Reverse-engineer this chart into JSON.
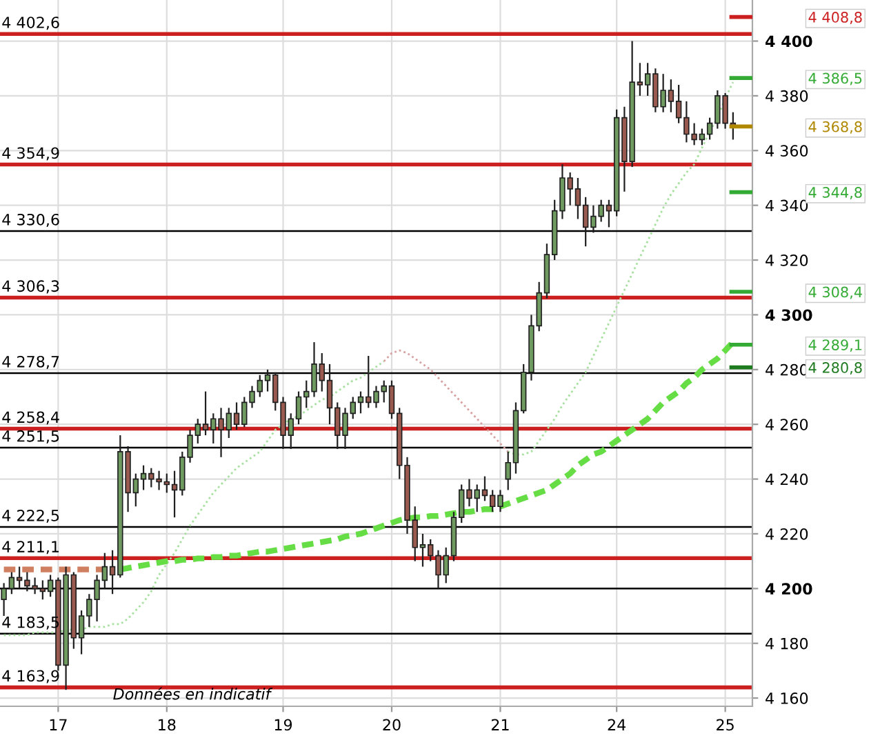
{
  "chart_data": {
    "type": "candlestick",
    "categories": [
      null,
      null,
      null,
      null,
      null,
      null,
      null,
      "17",
      null,
      null,
      null,
      null,
      null,
      null,
      null,
      null,
      null,
      null,
      null,
      null,
      null,
      "18",
      null,
      null,
      null,
      null,
      null,
      null,
      null,
      null,
      null,
      null,
      null,
      null,
      null,
      null,
      "19",
      null,
      null,
      null,
      null,
      null,
      null,
      null,
      null,
      null,
      null,
      null,
      null,
      null,
      "20",
      null,
      null,
      null,
      null,
      null,
      null,
      null,
      null,
      null,
      null,
      null,
      null,
      null,
      "21",
      null,
      null,
      null,
      null,
      null,
      null,
      null,
      null,
      null,
      null,
      null,
      null,
      null,
      null,
      "24",
      null,
      null,
      null,
      null,
      null,
      null,
      null,
      null,
      null,
      null,
      null,
      null,
      null,
      "25",
      null
    ],
    "ohlc": [
      [
        4196,
        4202,
        4190,
        4200
      ],
      [
        4200,
        4206,
        4198,
        4204
      ],
      [
        4204,
        4208,
        4200,
        4203
      ],
      [
        4203,
        4206,
        4199,
        4201
      ],
      [
        4201,
        4204,
        4198,
        4200
      ],
      [
        4200,
        4203,
        4196,
        4199
      ],
      [
        4199,
        4205,
        4197,
        4203
      ],
      [
        4203,
        4204,
        4170,
        4172
      ],
      [
        4172,
        4208,
        4163,
        4205
      ],
      [
        4205,
        4206,
        4178,
        4182
      ],
      [
        4182,
        4192,
        4176,
        4190
      ],
      [
        4190,
        4198,
        4186,
        4196
      ],
      [
        4196,
        4205,
        4188,
        4203
      ],
      [
        4203,
        4213,
        4200,
        4208
      ],
      [
        4208,
        4214,
        4198,
        4205
      ],
      [
        4205,
        4256,
        4204,
        4250
      ],
      [
        4250,
        4252,
        4228,
        4235
      ],
      [
        4235,
        4242,
        4230,
        4240
      ],
      [
        4240,
        4245,
        4236,
        4242
      ],
      [
        4242,
        4244,
        4237,
        4240
      ],
      [
        4240,
        4243,
        4236,
        4239
      ],
      [
        4239,
        4242,
        4235,
        4238
      ],
      [
        4238,
        4243,
        4226,
        4236
      ],
      [
        4236,
        4250,
        4234,
        4248
      ],
      [
        4248,
        4258,
        4246,
        4256
      ],
      [
        4256,
        4262,
        4253,
        4260
      ],
      [
        4260,
        4272,
        4256,
        4258
      ],
      [
        4258,
        4264,
        4253,
        4262
      ],
      [
        4262,
        4266,
        4248,
        4258
      ],
      [
        4258,
        4266,
        4255,
        4264
      ],
      [
        4264,
        4268,
        4258,
        4260
      ],
      [
        4260,
        4270,
        4259,
        4268
      ],
      [
        4268,
        4274,
        4266,
        4272
      ],
      [
        4272,
        4278,
        4270,
        4276
      ],
      [
        4276,
        4280,
        4272,
        4278
      ],
      [
        4278,
        4279,
        4265,
        4268
      ],
      [
        4268,
        4270,
        4251,
        4256
      ],
      [
        4256,
        4264,
        4251,
        4262
      ],
      [
        4262,
        4272,
        4260,
        4270
      ],
      [
        4270,
        4276,
        4266,
        4272
      ],
      [
        4272,
        4290,
        4270,
        4282
      ],
      [
        4282,
        4286,
        4272,
        4276
      ],
      [
        4276,
        4282,
        4260,
        4266
      ],
      [
        4266,
        4268,
        4251,
        4256
      ],
      [
        4256,
        4266,
        4251,
        4264
      ],
      [
        4264,
        4270,
        4262,
        4268
      ],
      [
        4268,
        4272,
        4264,
        4270
      ],
      [
        4270,
        4285,
        4266,
        4268
      ],
      [
        4268,
        4274,
        4266,
        4272
      ],
      [
        4272,
        4276,
        4268,
        4274
      ],
      [
        4274,
        4276,
        4262,
        4264
      ],
      [
        4264,
        4266,
        4240,
        4245
      ],
      [
        4245,
        4248,
        4220,
        4225
      ],
      [
        4225,
        4230,
        4210,
        4215
      ],
      [
        4215,
        4220,
        4208,
        4216
      ],
      [
        4216,
        4218,
        4210,
        4212
      ],
      [
        4212,
        4214,
        4200,
        4205
      ],
      [
        4205,
        4215,
        4202,
        4212
      ],
      [
        4212,
        4228,
        4210,
        4226
      ],
      [
        4226,
        4238,
        4224,
        4236
      ],
      [
        4236,
        4240,
        4230,
        4233
      ],
      [
        4233,
        4238,
        4228,
        4236
      ],
      [
        4236,
        4241,
        4232,
        4234
      ],
      [
        4234,
        4236,
        4228,
        4230
      ],
      [
        4230,
        4236,
        4228,
        4234
      ],
      [
        4240,
        4250,
        4236,
        4246
      ],
      [
        4246,
        4268,
        4242,
        4265
      ],
      [
        4265,
        4282,
        4264,
        4279
      ],
      [
        4279,
        4300,
        4276,
        4296
      ],
      [
        4296,
        4312,
        4294,
        4308
      ],
      [
        4308,
        4326,
        4306,
        4322
      ],
      [
        4322,
        4342,
        4320,
        4338
      ],
      [
        4338,
        4355,
        4335,
        4350
      ],
      [
        4350,
        4352,
        4340,
        4346
      ],
      [
        4346,
        4350,
        4335,
        4340
      ],
      [
        4340,
        4343,
        4325,
        4332
      ],
      [
        4332,
        4340,
        4330,
        4336
      ],
      [
        4336,
        4342,
        4334,
        4340
      ],
      [
        4340,
        4342,
        4332,
        4338
      ],
      [
        4338,
        4375,
        4336,
        4372
      ],
      [
        4372,
        4376,
        4345,
        4356
      ],
      [
        4356,
        4400,
        4354,
        4385
      ],
      [
        4385,
        4392,
        4380,
        4384
      ],
      [
        4384,
        4392,
        4380,
        4388
      ],
      [
        4388,
        4390,
        4374,
        4376
      ],
      [
        4376,
        4388,
        4374,
        4382
      ],
      [
        4382,
        4386,
        4374,
        4378
      ],
      [
        4378,
        4384,
        4370,
        4372
      ],
      [
        4372,
        4378,
        4363,
        4366
      ],
      [
        4366,
        4370,
        4362,
        4364
      ],
      [
        4364,
        4368,
        4362,
        4366
      ],
      [
        4366,
        4372,
        4364,
        4370
      ],
      [
        4370,
        4382,
        4368,
        4380
      ],
      [
        4380,
        4381,
        4368,
        4370
      ],
      [
        4370,
        4374,
        4364,
        4368.8
      ]
    ],
    "series": [
      {
        "type": "line",
        "color": "#a8e0a0",
        "line_style": "dotted",
        "values": [
          4183,
          4183,
          4183,
          4183,
          4184,
          4184,
          4184,
          4184,
          4185,
          4185,
          4185,
          4186,
          4186,
          4186,
          4187,
          4187,
          4189,
          4192,
          4195,
          4199,
          4205,
          4209,
          4213,
          4218,
          4223,
          4227,
          4231,
          4235,
          4238,
          4241,
          4244,
          4246,
          4248,
          4250,
          4254,
          4258,
          4260,
          4262,
          4263,
          4265,
          4267,
          4269,
          4270,
          4272,
          4274,
          4276,
          4277,
          4279,
          4281,
          4283,
          null,
          null,
          null,
          null,
          null,
          null,
          null,
          null,
          null,
          null,
          null,
          null,
          null,
          null,
          null,
          null,
          null,
          null,
          null,
          null,
          null,
          null,
          null,
          null,
          null,
          null,
          null,
          null,
          null,
          null,
          null,
          null,
          null,
          null,
          null,
          null,
          null,
          null,
          null,
          null,
          null,
          null,
          null,
          null,
          null
        ]
      },
      {
        "type": "line",
        "color": "#d8a0a0",
        "line_style": "dotted",
        "values": [
          null,
          null,
          null,
          null,
          null,
          null,
          null,
          null,
          null,
          null,
          null,
          null,
          null,
          null,
          null,
          null,
          null,
          null,
          null,
          null,
          null,
          null,
          null,
          null,
          null,
          null,
          null,
          null,
          null,
          null,
          null,
          null,
          null,
          null,
          null,
          null,
          null,
          null,
          null,
          null,
          null,
          null,
          null,
          null,
          null,
          null,
          null,
          null,
          null,
          4283,
          4286,
          4287,
          4286,
          4284,
          4282,
          4280,
          4277,
          4274,
          4271,
          4268,
          4265,
          4262,
          4259,
          4256,
          4253,
          4250,
          null,
          null,
          null,
          null,
          null,
          null,
          null,
          null,
          null,
          null,
          null,
          null,
          null,
          null,
          null,
          null,
          null,
          null,
          null,
          null,
          null,
          null,
          null,
          null,
          null,
          null,
          null,
          null,
          null
        ]
      },
      {
        "type": "line",
        "color": "#a8e0a0",
        "line_style": "dotted",
        "values": [
          null,
          null,
          null,
          null,
          null,
          null,
          null,
          null,
          null,
          null,
          null,
          null,
          null,
          null,
          null,
          null,
          null,
          null,
          null,
          null,
          null,
          null,
          null,
          null,
          null,
          null,
          null,
          null,
          null,
          null,
          null,
          null,
          null,
          null,
          null,
          null,
          null,
          null,
          null,
          null,
          null,
          null,
          null,
          null,
          null,
          null,
          null,
          null,
          null,
          null,
          null,
          null,
          null,
          null,
          null,
          null,
          null,
          null,
          null,
          null,
          null,
          null,
          null,
          null,
          null,
          4250,
          4249,
          4249,
          4250,
          4254,
          4258,
          4262,
          4267,
          4271,
          4275,
          4279,
          4285,
          4291,
          4297,
          4303,
          4309,
          4315,
          4321,
          4327,
          4333,
          4339,
          4344,
          4348,
          4352,
          4355,
          4361,
          4367,
          4372,
          4379,
          4385
        ]
      },
      {
        "type": "line",
        "color": "#d08060",
        "line_style": "dashed",
        "values": [
          4207,
          4207,
          4207,
          4207,
          4207,
          4207,
          4207,
          4207,
          4207,
          4207,
          4207,
          4207,
          4207,
          4207,
          4207,
          null,
          null,
          null,
          null,
          null,
          null,
          null,
          null,
          null,
          null,
          null,
          null,
          null,
          null,
          null,
          null,
          null,
          null,
          null,
          null,
          null,
          null,
          null,
          null,
          null,
          null,
          null,
          null,
          null,
          null,
          null,
          null,
          null,
          null,
          null,
          null,
          null,
          null,
          null,
          null,
          null,
          null,
          null,
          null,
          null,
          null,
          null,
          null,
          null,
          null,
          null,
          null,
          null,
          null,
          null,
          null,
          null,
          null,
          null,
          null,
          null,
          null,
          null,
          null,
          null,
          null,
          null,
          null,
          null,
          null,
          null,
          null,
          null,
          null,
          null,
          null,
          null,
          null,
          null,
          null
        ]
      },
      {
        "type": "line",
        "color": "#66dd44",
        "line_style": "dashed",
        "values": [
          null,
          null,
          null,
          null,
          null,
          null,
          null,
          null,
          null,
          null,
          null,
          null,
          null,
          null,
          null,
          4207,
          4207.5,
          4208,
          4208.5,
          4209,
          4209.5,
          4210,
          4210,
          4210.5,
          4210.5,
          4211,
          4211,
          4211.5,
          4211.5,
          4212,
          4212,
          4212.5,
          4213,
          4213.5,
          4213.5,
          4214,
          4214.5,
          4215,
          4215.5,
          4216,
          4216.5,
          4217,
          4217.5,
          4218,
          4219,
          4219.5,
          4220,
          4221,
          4222,
          4223,
          4224,
          4225,
          4225.5,
          4226,
          4226,
          4226.5,
          4226.5,
          4227,
          4227.5,
          4228,
          4228,
          4228.5,
          4229,
          4229,
          4230,
          4231,
          4232,
          4233,
          4234,
          4235,
          4236,
          4238,
          4240,
          4242,
          4245,
          4247,
          4249,
          4250,
          4252,
          4254,
          4256,
          4258,
          4260,
          4262,
          4265,
          4268,
          4270,
          4272,
          4275,
          4277,
          4280,
          4282,
          4284,
          4287,
          4290
        ]
      }
    ],
    "ylim": [
      4157,
      4415
    ],
    "yticks": [
      {
        "value": 4160,
        "label": "4 160"
      },
      {
        "value": 4180,
        "label": "4 180"
      },
      {
        "value": 4200,
        "label": "4 200"
      },
      {
        "value": 4220,
        "label": "4 220"
      },
      {
        "value": 4240,
        "label": "4 240"
      },
      {
        "value": 4260,
        "label": "4 260"
      },
      {
        "value": 4280,
        "label": "4 280"
      },
      {
        "value": 4300,
        "label": "4 300"
      },
      {
        "value": 4320,
        "label": "4 320"
      },
      {
        "value": 4340,
        "label": "4 340"
      },
      {
        "value": 4360,
        "label": "4 360"
      },
      {
        "value": 4380,
        "label": "4 380"
      },
      {
        "value": 4400,
        "label": "4 400"
      }
    ],
    "grid": true,
    "ref_lines": [
      {
        "axis": "y",
        "value": 4402.6,
        "label": "4 402,6",
        "color": "#cc2020"
      },
      {
        "axis": "y",
        "value": 4354.9,
        "label": "4 354,9",
        "color": "#cc2020"
      },
      {
        "axis": "y",
        "value": 4330.6,
        "label": "4 330,6",
        "color": "#000000"
      },
      {
        "axis": "y",
        "value": 4306.3,
        "label": "4 306,3",
        "color": "#cc2020"
      },
      {
        "axis": "y",
        "value": 4278.7,
        "label": "4 278,7",
        "color": "#000000"
      },
      {
        "axis": "y",
        "value": 4258.4,
        "label": "4 258,4",
        "color": "#cc2020"
      },
      {
        "axis": "y",
        "value": 4251.5,
        "label": "4 251,5",
        "color": "#000000"
      },
      {
        "axis": "y",
        "value": 4222.5,
        "label": "4 222,5",
        "color": "#000000"
      },
      {
        "axis": "y",
        "value": 4211.1,
        "label": "4 211,1",
        "color": "#cc2020"
      },
      {
        "axis": "y",
        "value": 4200,
        "label": null,
        "color": "#000000"
      },
      {
        "axis": "y",
        "value": 4183.5,
        "label": "4 183,5",
        "color": "#000000"
      },
      {
        "axis": "y",
        "value": 4163.9,
        "label": "4 163,9",
        "color": "#cc2020"
      }
    ],
    "y2lim": [
      4157,
      4415
    ],
    "y2ticks": [
      {
        "value": 4408.8,
        "label": "4 408,8"
      },
      {
        "value": 4386.5,
        "label": "4 386,5"
      },
      {
        "value": 4368.8,
        "label": "4 368,8"
      },
      {
        "value": 4344.8,
        "label": "4 344,8"
      },
      {
        "value": 4308.4,
        "label": "4 308,4"
      },
      {
        "value": 4289.1,
        "label": "4 289,1"
      },
      {
        "value": 4280.8,
        "label": "4 280,8"
      }
    ],
    "annotations": [
      "Données en indicatif"
    ]
  }
}
